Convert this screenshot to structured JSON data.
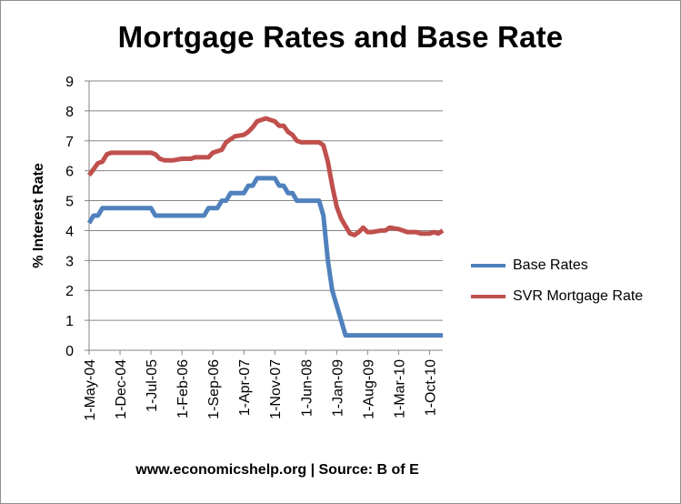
{
  "chart_data": {
    "type": "line",
    "title": "Mortgage Rates and Base Rate",
    "ylabel": "% Interest Rate",
    "xlabel": "",
    "ylim": [
      0,
      9
    ],
    "yticks": [
      "0",
      "1",
      "2",
      "3",
      "4",
      "5",
      "6",
      "7",
      "8",
      "9"
    ],
    "xticks": [
      "1-May-04",
      "1-Dec-04",
      "1-Jul-05",
      "1-Feb-06",
      "1-Sep-06",
      "1-Apr-07",
      "1-Nov-07",
      "1-Jun-08",
      "1-Jan-09",
      "1-Aug-09",
      "1-Mar-10",
      "1-Oct-10"
    ],
    "grid": "horizontal",
    "legend_position": "right",
    "series": [
      {
        "name": "Base Rates",
        "color": "#4f81bd",
        "points": [
          [
            "2004-05",
            4.25
          ],
          [
            "2004-06",
            4.5
          ],
          [
            "2004-07",
            4.5
          ],
          [
            "2004-08",
            4.75
          ],
          [
            "2004-09",
            4.75
          ],
          [
            "2005-07",
            4.75
          ],
          [
            "2005-08",
            4.5
          ],
          [
            "2006-07",
            4.5
          ],
          [
            "2006-08",
            4.75
          ],
          [
            "2006-10",
            4.75
          ],
          [
            "2006-11",
            5.0
          ],
          [
            "2006-12",
            5.0
          ],
          [
            "2007-01",
            5.25
          ],
          [
            "2007-04",
            5.25
          ],
          [
            "2007-05",
            5.5
          ],
          [
            "2007-06",
            5.5
          ],
          [
            "2007-07",
            5.75
          ],
          [
            "2007-11",
            5.75
          ],
          [
            "2007-12",
            5.5
          ],
          [
            "2008-01",
            5.5
          ],
          [
            "2008-02",
            5.25
          ],
          [
            "2008-03",
            5.25
          ],
          [
            "2008-04",
            5.0
          ],
          [
            "2008-09",
            5.0
          ],
          [
            "2008-10",
            4.5
          ],
          [
            "2008-11",
            3.0
          ],
          [
            "2008-12",
            2.0
          ],
          [
            "2009-01",
            1.5
          ],
          [
            "2009-02",
            1.0
          ],
          [
            "2009-03",
            0.5
          ],
          [
            "2011-01",
            0.5
          ]
        ]
      },
      {
        "name": "SVR Mortgage Rate",
        "color": "#c0504d",
        "points": [
          [
            "2004-05",
            5.85
          ],
          [
            "2004-06",
            6.05
          ],
          [
            "2004-07",
            6.25
          ],
          [
            "2004-08",
            6.3
          ],
          [
            "2004-09",
            6.55
          ],
          [
            "2004-10",
            6.6
          ],
          [
            "2005-07",
            6.6
          ],
          [
            "2005-08",
            6.55
          ],
          [
            "2005-09",
            6.4
          ],
          [
            "2005-10",
            6.35
          ],
          [
            "2005-11",
            6.35
          ],
          [
            "2005-12",
            6.35
          ],
          [
            "2006-02",
            6.4
          ],
          [
            "2006-04",
            6.4
          ],
          [
            "2006-05",
            6.45
          ],
          [
            "2006-08",
            6.45
          ],
          [
            "2006-09",
            6.6
          ],
          [
            "2006-10",
            6.65
          ],
          [
            "2006-11",
            6.7
          ],
          [
            "2006-12",
            6.95
          ],
          [
            "2007-01",
            7.05
          ],
          [
            "2007-02",
            7.15
          ],
          [
            "2007-04",
            7.2
          ],
          [
            "2007-05",
            7.3
          ],
          [
            "2007-06",
            7.45
          ],
          [
            "2007-07",
            7.65
          ],
          [
            "2007-08",
            7.7
          ],
          [
            "2007-09",
            7.75
          ],
          [
            "2007-10",
            7.7
          ],
          [
            "2007-11",
            7.65
          ],
          [
            "2007-12",
            7.5
          ],
          [
            "2008-01",
            7.5
          ],
          [
            "2008-02",
            7.3
          ],
          [
            "2008-03",
            7.2
          ],
          [
            "2008-04",
            7.0
          ],
          [
            "2008-05",
            6.95
          ],
          [
            "2008-08",
            6.95
          ],
          [
            "2008-09",
            6.95
          ],
          [
            "2008-10",
            6.85
          ],
          [
            "2008-11",
            6.3
          ],
          [
            "2008-12",
            5.5
          ],
          [
            "2009-01",
            4.8
          ],
          [
            "2009-02",
            4.4
          ],
          [
            "2009-03",
            4.15
          ],
          [
            "2009-04",
            3.9
          ],
          [
            "2009-05",
            3.85
          ],
          [
            "2009-06",
            3.95
          ],
          [
            "2009-07",
            4.1
          ],
          [
            "2009-08",
            3.95
          ],
          [
            "2009-09",
            3.95
          ],
          [
            "2009-11",
            4.0
          ],
          [
            "2009-12",
            4.0
          ],
          [
            "2010-01",
            4.1
          ],
          [
            "2010-03",
            4.05
          ],
          [
            "2010-05",
            3.95
          ],
          [
            "2010-07",
            3.95
          ],
          [
            "2010-08",
            3.9
          ],
          [
            "2010-10",
            3.9
          ],
          [
            "2010-11",
            3.95
          ],
          [
            "2010-12",
            3.9
          ],
          [
            "2011-01",
            4.0
          ]
        ]
      }
    ]
  },
  "footer": "www.economicshelp.org | Source: B of E"
}
